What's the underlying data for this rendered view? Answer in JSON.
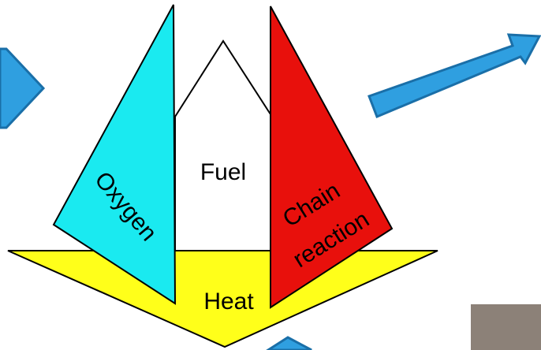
{
  "nodes": [
    {
      "label": "Fuel"
    },
    {
      "label": "Oxygen"
    },
    {
      "label": [
        "Chain",
        "reaction"
      ]
    },
    {
      "label": "Heat"
    }
  ]
}
